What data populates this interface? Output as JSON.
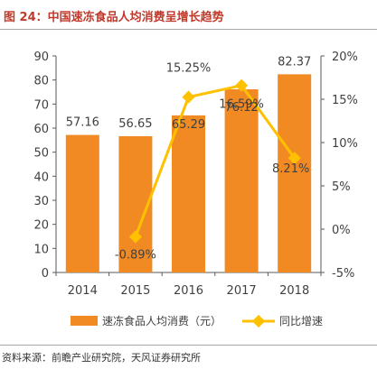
{
  "figure": {
    "title": "图 24：中国速冻食品人均消费呈增长趋势",
    "source": "资料来源：前瞻产业研究院，天风证券研究所"
  },
  "colors": {
    "bar": "#f28a24",
    "line": "#ffc000",
    "title": "#c0392b",
    "axis": "#595959",
    "text": "#404040"
  },
  "chart_data": {
    "type": "bar",
    "categories": [
      "2014",
      "2015",
      "2016",
      "2017",
      "2018"
    ],
    "series": [
      {
        "name": "速冻食品人均消费（元）",
        "type": "bar",
        "axis": "left",
        "values": [
          57.16,
          56.65,
          65.29,
          76.12,
          82.37
        ],
        "labels": [
          "57.16",
          "56.65",
          "65.29",
          "76.12",
          "82.37"
        ]
      },
      {
        "name": "同比增速",
        "type": "line",
        "axis": "right",
        "values": [
          null,
          -0.89,
          15.25,
          16.59,
          8.21
        ],
        "labels": [
          "",
          "-0.89%",
          "15.25%",
          "16.59%",
          "8.21%"
        ]
      }
    ],
    "y_left": {
      "min": 0,
      "max": 90,
      "ticks": [
        "0",
        "10",
        "20",
        "30",
        "40",
        "50",
        "60",
        "70",
        "80",
        "90"
      ]
    },
    "y_right": {
      "min": -5,
      "max": 20,
      "ticks": [
        "-5%",
        "0%",
        "5%",
        "10%",
        "15%",
        "20%"
      ]
    },
    "grid": false,
    "legend_position": "bottom"
  }
}
